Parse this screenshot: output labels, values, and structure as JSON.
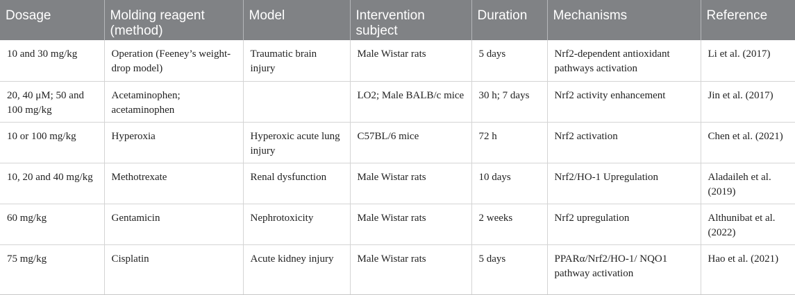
{
  "table": {
    "headers": [
      "Dosage",
      "Molding reagent (method)",
      "Model",
      "Intervention subject",
      "Duration",
      "Mechanisms",
      "Reference"
    ],
    "rows": [
      [
        "10 and 30 mg/kg",
        "Operation (Feeney’s weight-drop model)",
        "Traumatic brain injury",
        "Male Wistar rats",
        "5 days",
        "Nrf2-dependent antioxidant pathways activation",
        "Li et al. (2017)"
      ],
      [
        "20, 40 μM; 50 and 100 mg/kg",
        "Acetaminophen; acetaminophen",
        "",
        "LO2; Male BALB/c mice",
        "30 h; 7 days",
        "Nrf2 activity enhancement",
        "Jin et al. (2017)"
      ],
      [
        "10 or 100 mg/kg",
        "Hyperoxia",
        "Hyperoxic acute lung injury",
        "C57BL/6 mice",
        "72 h",
        "Nrf2 activation",
        "Chen et al. (2021)"
      ],
      [
        "10, 20 and 40 mg/kg",
        "Methotrexate",
        "Renal dysfunction",
        "Male Wistar rats",
        "10 days",
        "Nrf2/HO-1 Upregulation",
        "Aladaileh et al. (2019)"
      ],
      [
        "60 mg/kg",
        "Gentamicin",
        "Nephrotoxicity",
        "Male Wistar rats",
        "2 weeks",
        "Nrf2 upregulation",
        "Althunibat et al. (2022)"
      ],
      [
        "75 mg/kg",
        "Cisplatin",
        "Acute kidney injury",
        "Male Wistar rats",
        "5 days",
        "PPARα/Nrf2/HO-1/ NQO1 pathway activation",
        "Hao et al. (2021)"
      ]
    ]
  }
}
